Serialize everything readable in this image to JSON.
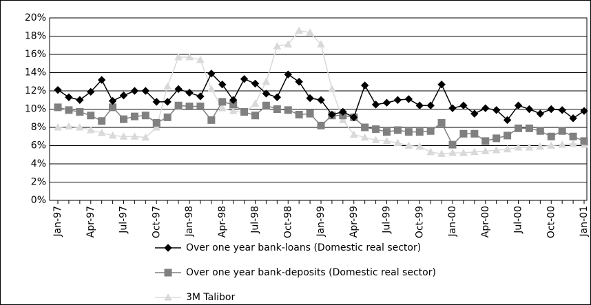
{
  "chart_data": {
    "type": "line",
    "categories": [
      "Jan-97",
      null,
      null,
      "Apr-97",
      null,
      null,
      "Jul-97",
      null,
      null,
      "Oct-97",
      null,
      null,
      "Jan-98",
      null,
      null,
      "Apr-98",
      null,
      null,
      "Jul-98",
      null,
      null,
      "Oct-98",
      null,
      null,
      "Jan-99",
      null,
      null,
      "Apr-99",
      null,
      null,
      "Jul-99",
      null,
      null,
      "Oct-99",
      null,
      null,
      "Jan-00",
      null,
      null,
      "Apr-00",
      null,
      null,
      "Jul-00",
      null,
      null,
      "Oct-00",
      null,
      null,
      "Jan-01"
    ],
    "series": [
      {
        "name": "Over one year bank-loans (Domestic real sector)",
        "color": "#000000",
        "marker": "diamond",
        "values": [
          12.1,
          11.3,
          11.0,
          11.9,
          13.2,
          10.9,
          11.5,
          12.0,
          12.0,
          10.8,
          10.8,
          12.2,
          11.8,
          11.4,
          13.9,
          12.7,
          11.0,
          13.3,
          12.8,
          11.7,
          11.3,
          13.8,
          13.0,
          11.2,
          11.0,
          9.4,
          9.7,
          9.1,
          12.6,
          10.5,
          10.7,
          11.0,
          11.1,
          10.4,
          10.4,
          12.7,
          10.1,
          10.4,
          9.5,
          10.1,
          9.9,
          8.8,
          10.4,
          10.0,
          9.5,
          10.0,
          9.9,
          9.0,
          9.8
        ]
      },
      {
        "name": "Over one year bank-deposits (Domestic real sector)",
        "color": "#808080",
        "marker": "square",
        "values": [
          10.2,
          9.9,
          9.7,
          9.3,
          8.7,
          10.2,
          8.9,
          9.2,
          9.3,
          8.5,
          9.1,
          10.4,
          10.3,
          10.3,
          8.8,
          10.8,
          10.5,
          9.7,
          9.3,
          10.4,
          10.0,
          9.9,
          9.4,
          9.5,
          8.2,
          9.3,
          9.3,
          9.1,
          8.0,
          7.8,
          7.5,
          7.7,
          7.5,
          7.5,
          7.6,
          8.5,
          6.1,
          7.3,
          7.3,
          6.5,
          6.8,
          7.1,
          7.9,
          7.9,
          7.6,
          7.0,
          7.6,
          7.0,
          6.5
        ]
      },
      {
        "name": "3M Talibor",
        "color": "#d9d9d9",
        "marker": "triangle",
        "values": [
          8.0,
          8.1,
          8.0,
          7.7,
          7.4,
          7.1,
          7.0,
          7.0,
          6.9,
          8.0,
          12.5,
          15.7,
          15.7,
          15.4,
          12.2,
          10.1,
          9.8,
          9.6,
          10.6,
          13.0,
          16.9,
          17.1,
          18.6,
          18.4,
          17.1,
          12.2,
          8.8,
          7.2,
          6.9,
          6.6,
          6.5,
          6.3,
          6.0,
          5.9,
          5.3,
          5.1,
          5.2,
          5.2,
          5.3,
          5.4,
          5.5,
          5.6,
          5.8,
          5.8,
          5.9,
          6.0,
          6.1,
          6.2,
          6.1
        ]
      }
    ],
    "ylim": [
      0,
      20
    ],
    "yticks": [
      {
        "value": 0,
        "label": "0%"
      },
      {
        "value": 2,
        "label": "2%"
      },
      {
        "value": 4,
        "label": "4%"
      },
      {
        "value": 6,
        "label": "6%"
      },
      {
        "value": 8,
        "label": "8%"
      },
      {
        "value": 10,
        "label": "10%"
      },
      {
        "value": 12,
        "label": "12%"
      },
      {
        "value": 14,
        "label": "14%"
      },
      {
        "value": 16,
        "label": "16%"
      },
      {
        "value": 18,
        "label": "18%"
      },
      {
        "value": 20,
        "label": "20%"
      }
    ],
    "grid": true,
    "legend": "bottom"
  }
}
